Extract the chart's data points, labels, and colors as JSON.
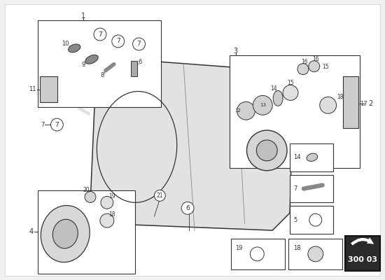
{
  "bg_color": "#f0f0f0",
  "page_color": "#ffffff",
  "line_color": "#333333",
  "light_line_color": "#888888",
  "watermark_color": "#c8c8c8",
  "part_number_box": "300 03",
  "part_number_box_bg": "#2a2a2a",
  "part_number_box_fg": "#ffffff"
}
